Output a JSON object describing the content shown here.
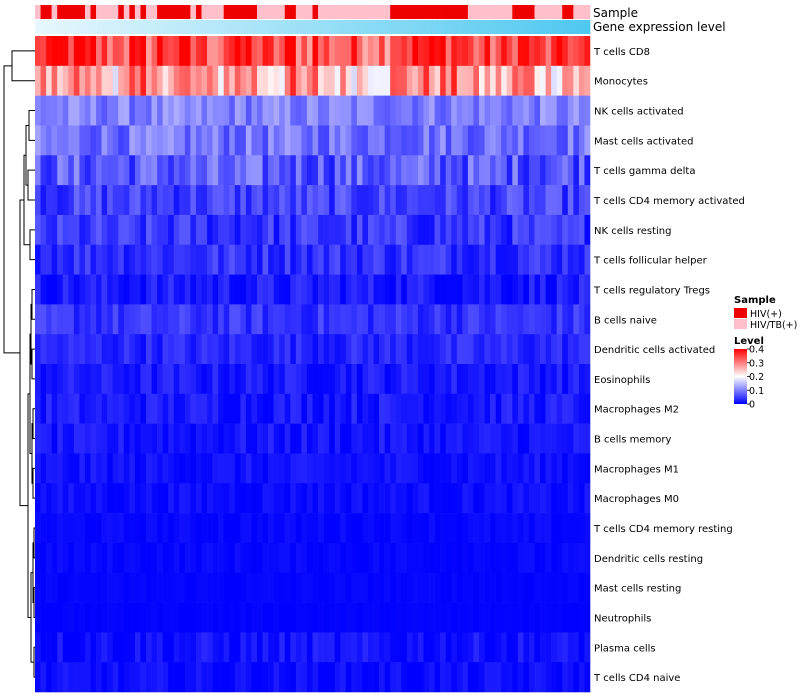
{
  "chart_data": {
    "type": "heatmap",
    "annotation_tracks": [
      {
        "name": "Sample",
        "kind": "categorical"
      },
      {
        "name": "Gene expression level",
        "kind": "gradient",
        "colors": [
          "#e6f7fd",
          "#4fc8f0"
        ]
      }
    ],
    "sample_annotation": [
      "HIV/TB(+)",
      "HIV(+)",
      "HIV(+)",
      "HIV/TB(+)",
      "HIV(+)",
      "HIV(+)",
      "HIV(+)",
      "HIV(+)",
      "HIV(+)",
      "HIV/TB(+)",
      "HIV(+)",
      "HIV/TB(+)",
      "HIV/TB(+)",
      "HIV/TB(+)",
      "HIV/TB(+)",
      "HIV(+)",
      "HIV/TB(+)",
      "HIV(+)",
      "HIV/TB(+)",
      "HIV(+)",
      "HIV/TB(+)",
      "HIV/TB(+)",
      "HIV(+)",
      "HIV(+)",
      "HIV(+)",
      "HIV(+)",
      "HIV(+)",
      "HIV(+)",
      "HIV/TB(+)",
      "HIV(+)",
      "HIV/TB(+)",
      "HIV/TB(+)",
      "HIV/TB(+)",
      "HIV/TB(+)",
      "HIV(+)",
      "HIV(+)",
      "HIV(+)",
      "HIV(+)",
      "HIV(+)",
      "HIV(+)",
      "HIV/TB(+)",
      "HIV/TB(+)",
      "HIV/TB(+)",
      "HIV/TB(+)",
      "HIV/TB(+)",
      "HIV(+)",
      "HIV(+)",
      "HIV/TB(+)",
      "HIV/TB(+)",
      "HIV/TB(+)",
      "HIV(+)",
      "HIV/TB(+)",
      "HIV/TB(+)",
      "HIV/TB(+)",
      "HIV/TB(+)",
      "HIV/TB(+)",
      "HIV/TB(+)",
      "HIV/TB(+)",
      "HIV/TB(+)",
      "HIV/TB(+)",
      "HIV/TB(+)",
      "HIV/TB(+)",
      "HIV/TB(+)",
      "HIV/TB(+)",
      "HIV(+)",
      "HIV(+)",
      "HIV(+)",
      "HIV(+)",
      "HIV(+)",
      "HIV(+)",
      "HIV(+)",
      "HIV(+)",
      "HIV(+)",
      "HIV(+)",
      "HIV(+)",
      "HIV(+)",
      "HIV(+)",
      "HIV(+)",
      "HIV/TB(+)",
      "HIV/TB(+)",
      "HIV/TB(+)",
      "HIV/TB(+)",
      "HIV/TB(+)",
      "HIV/TB(+)",
      "HIV/TB(+)",
      "HIV/TB(+)",
      "HIV(+)",
      "HIV(+)",
      "HIV(+)",
      "HIV(+)",
      "HIV/TB(+)",
      "HIV/TB(+)",
      "HIV/TB(+)",
      "HIV/TB(+)",
      "HIV/TB(+)",
      "HIV(+)",
      "HIV(+)",
      "HIV/TB(+)",
      "HIV/TB(+)",
      "HIV/TB(+)"
    ],
    "n_samples": 100,
    "rows": [
      "T cells CD8",
      "Monocytes",
      "NK cells activated",
      "Mast cells activated",
      "T cells gamma delta",
      "T cells CD4 memory activated",
      "NK cells resting",
      "T cells follicular helper",
      "T cells regulatory  Tregs",
      "B cells naive",
      "Dendritic cells activated",
      "Eosinophils",
      "Macrophages M2",
      "B cells memory",
      "Macrophages M1",
      "Macrophages M0",
      "T cells CD4 memory resting",
      "Dendritic cells resting",
      "Mast cells resting",
      "Neutrophils",
      "Plasma cells",
      "T cells CD4 naive"
    ],
    "row_means": [
      0.33,
      0.25,
      0.1,
      0.09,
      0.07,
      0.05,
      0.04,
      0.04,
      0.02,
      0.04,
      0.03,
      0.02,
      0.02,
      0.015,
      0.012,
      0.01,
      0.005,
      0.005,
      0.003,
      0.002,
      0.012,
      0.008
    ],
    "row_spread": [
      0.07,
      0.08,
      0.035,
      0.04,
      0.05,
      0.035,
      0.035,
      0.03,
      0.025,
      0.025,
      0.022,
      0.02,
      0.02,
      0.018,
      0.015,
      0.012,
      0.008,
      0.008,
      0.005,
      0.003,
      0.02,
      0.015
    ],
    "legend": {
      "sample_title": "Sample",
      "sample_entries": [
        {
          "label": "HIV(+)",
          "color": "#ee0000"
        },
        {
          "label": "HIV/TB(+)",
          "color": "#ffc0cb"
        }
      ],
      "level_title": "Level",
      "level_ticks": [
        "0.4",
        "0.3",
        "0.2",
        "0.1",
        "0"
      ],
      "level_range": [
        0,
        0.4
      ],
      "level_colors": [
        "#0000ff",
        "#ffffff",
        "#ff0000"
      ]
    },
    "dendrogram": "row clustering tree (left)"
  }
}
